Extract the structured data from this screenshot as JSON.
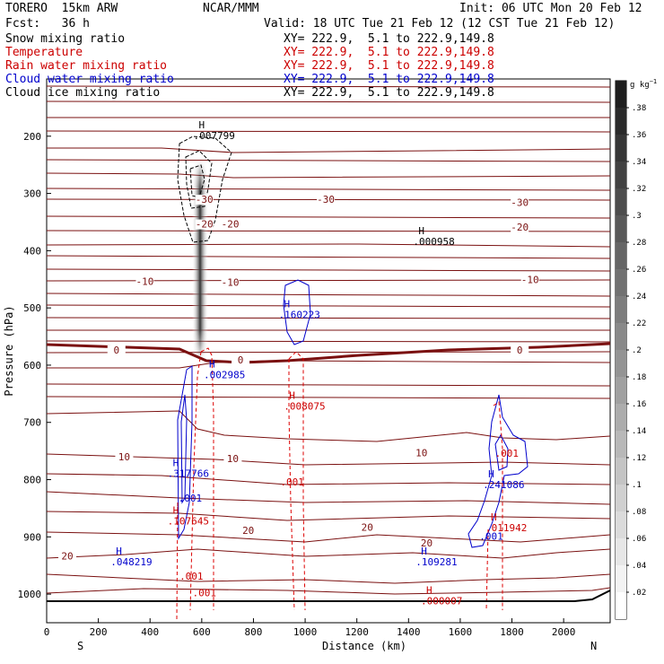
{
  "header": {
    "model": "TORERO  15km ARW",
    "center": "NCAR/MMM",
    "init": "Init: 06 UTC Mon 20 Feb 12",
    "fcst": "Fcst:   36 h",
    "valid": "Valid: 18 UTC Tue 21 Feb 12 (12 CST Tue 21 Feb 12)"
  },
  "fields": [
    {
      "name": "Snow mixing ratio",
      "xy": "XY= 222.9,  5.1 to 222.9,149.8",
      "color": "#000000"
    },
    {
      "name": "Temperature",
      "xy": "XY= 222.9,  5.1 to 222.9,149.8",
      "color": "#cc0000"
    },
    {
      "name": "Rain water mixing ratio",
      "xy": "XY= 222.9,  5.1 to 222.9,149.8",
      "color": "#cc0000"
    },
    {
      "name": "Cloud water mixing ratio",
      "xy": "XY= 222.9,  5.1 to 222.9,149.8",
      "color": "#0000cc"
    },
    {
      "name": "Cloud ice mixing ratio",
      "xy": "XY= 222.9,  5.1 to 222.9,149.8",
      "color": "#000000"
    }
  ],
  "colorbar": {
    "unit": "g kg",
    "unit_exp": "−1",
    "ticks": [
      ".38",
      ".36",
      ".34",
      ".32",
      ".3",
      ".28",
      ".26",
      ".24",
      ".22",
      ".2",
      ".18",
      ".16",
      ".14",
      ".12",
      ".1",
      ".08",
      ".06",
      ".04",
      ".02"
    ]
  },
  "chart_data": {
    "type": "cross-section",
    "xlabel": "Distance (km)",
    "ylabel": "Pressure (hPa)",
    "xlim": [
      0,
      2180
    ],
    "ylim": [
      1050,
      100
    ],
    "xticks": [
      "0",
      "200",
      "400",
      "600",
      "800",
      "1000",
      "1200",
      "1400",
      "1600",
      "1800",
      "2000"
    ],
    "yticks": [
      "200",
      "300",
      "400",
      "500",
      "600",
      "700",
      "800",
      "900",
      "1000"
    ],
    "x_end_labels": {
      "left": "S",
      "right": "N"
    },
    "temperature_isotherm_labels": [
      {
        "text": "-30",
        "x": 610,
        "p": 315
      },
      {
        "text": "-30",
        "x": 1080,
        "p": 315
      },
      {
        "text": "-30",
        "x": 1830,
        "p": 320
      },
      {
        "text": "-20",
        "x": 610,
        "p": 358
      },
      {
        "text": "-20",
        "x": 710,
        "p": 358
      },
      {
        "text": "-20",
        "x": 1830,
        "p": 363
      },
      {
        "text": "-10",
        "x": 380,
        "p": 458
      },
      {
        "text": "-10",
        "x": 710,
        "p": 460
      },
      {
        "text": "-10",
        "x": 1870,
        "p": 455
      },
      {
        "text": "0",
        "x": 270,
        "p": 578
      },
      {
        "text": "0",
        "x": 750,
        "p": 595
      },
      {
        "text": "0",
        "x": 1830,
        "p": 578
      },
      {
        "text": "10",
        "x": 300,
        "p": 765
      },
      {
        "text": "10",
        "x": 720,
        "p": 768
      },
      {
        "text": "10",
        "x": 1450,
        "p": 758
      },
      {
        "text": "20",
        "x": 80,
        "p": 938
      },
      {
        "text": "20",
        "x": 780,
        "p": 893
      },
      {
        "text": "20",
        "x": 1240,
        "p": 888
      },
      {
        "text": "20",
        "x": 1470,
        "p": 915
      }
    ],
    "extrema_labels": [
      {
        "text": ".007799",
        "x": 630,
        "p": 205,
        "color": "#000000"
      },
      {
        "text": ".000958",
        "x": 1480,
        "p": 390,
        "color": "#000000"
      },
      {
        "text": ".160223",
        "x": 960,
        "p": 518,
        "color": "#0000cc"
      },
      {
        "text": ".002985",
        "x": 670,
        "p": 623,
        "color": "#0000cc"
      },
      {
        "text": ".008075",
        "x": 980,
        "p": 678,
        "color": "#cc0000"
      },
      {
        "text": ".317766",
        "x": 530,
        "p": 795,
        "color": "#0000cc"
      },
      {
        "text": ".107645",
        "x": 530,
        "p": 878,
        "color": "#cc0000"
      },
      {
        "text": ".241086",
        "x": 1750,
        "p": 815,
        "color": "#0000cc"
      },
      {
        "text": ".011942",
        "x": 1760,
        "p": 890,
        "color": "#cc0000"
      },
      {
        "text": ".048219",
        "x": 310,
        "p": 950,
        "color": "#0000cc"
      },
      {
        "text": ".109281",
        "x": 1490,
        "p": 950,
        "color": "#0000cc"
      },
      {
        "text": ".000007",
        "x": 1510,
        "p": 1018,
        "color": "#cc0000"
      }
    ],
    "contour_labels": [
      {
        "text": ".001",
        "x": 555,
        "p": 838,
        "color": "#0000cc"
      },
      {
        "text": ".001",
        "x": 950,
        "p": 810,
        "color": "#cc0000"
      },
      {
        "text": ".001",
        "x": 560,
        "p": 975,
        "color": "#cc0000"
      },
      {
        "text": ".001",
        "x": 610,
        "p": 1004,
        "color": "#cc0000"
      },
      {
        "text": ".001",
        "x": 1780,
        "p": 760,
        "color": "#cc0000"
      },
      {
        "text": ".001",
        "x": 1720,
        "p": 905,
        "color": "#0000cc"
      }
    ]
  }
}
